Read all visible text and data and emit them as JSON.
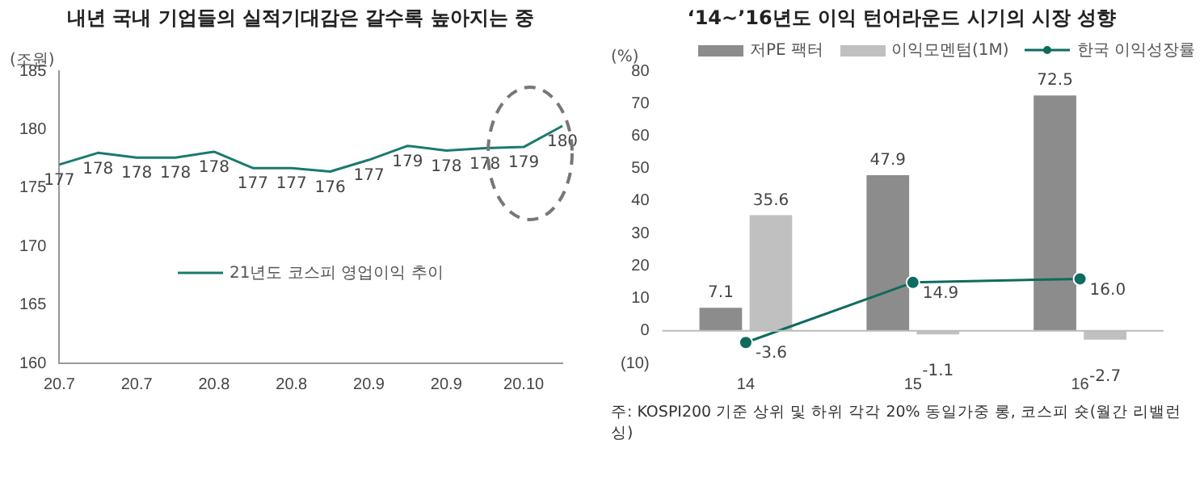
{
  "chart_data": [
    {
      "type": "line",
      "title": "내년 국내 기업들의 실적기대감은 갈수록 높아지는 중",
      "ylabel": "(조원)",
      "categories": [
        "20.7",
        null,
        "20.7",
        null,
        "20.8",
        null,
        "20.8",
        null,
        "20.9",
        null,
        "20.9",
        null,
        "20.10",
        null
      ],
      "series": [
        {
          "name": "21년도 코스피 영업이익 추이",
          "color": "#1a7a6e",
          "values": [
            177.0,
            178.0,
            177.6,
            177.6,
            178.1,
            176.7,
            176.7,
            176.4,
            177.4,
            178.6,
            178.2,
            178.4,
            178.5,
            180.3
          ],
          "value_labels": [
            "177",
            "178",
            "178",
            "178",
            "178",
            "177",
            "177",
            "176",
            "177",
            "179",
            "178",
            "178",
            "179",
            "180"
          ]
        }
      ],
      "ylim": [
        160,
        185
      ],
      "yticks": [
        160,
        165,
        170,
        175,
        180,
        185
      ],
      "grid": false,
      "legend": "center",
      "marker": "none"
    },
    {
      "type": "bar",
      "title": "‘14~’16년도 이익 턴어라운드 시기의 시장 성향",
      "ylabel": "(%)",
      "categories": [
        "14",
        "15",
        "16"
      ],
      "series": [
        {
          "name": "저PE 팩터",
          "color": "#8c8c8c",
          "values": [
            7.1,
            47.9,
            72.5
          ]
        },
        {
          "name": "이익모멘텀(1M)",
          "color": "#c0c0c0",
          "values": [
            35.6,
            -1.1,
            -2.7
          ]
        },
        {
          "name": "한국 이익성장률",
          "type": "line",
          "color": "#0f6b5e",
          "values": [
            -3.6,
            14.9,
            16.0
          ],
          "value_labels": [
            "-3.6",
            "14.9",
            "16.0"
          ]
        }
      ],
      "ref_lines": [
        {
          "axis": "y",
          "value": 0,
          "color": "#bbbbbb"
        }
      ],
      "ylim": [
        -10,
        80
      ],
      "yticks": [
        {
          "value": -10,
          "label": "(10)"
        },
        0,
        10,
        20,
        30,
        40,
        50,
        60,
        70,
        80
      ],
      "grid": false,
      "legend": "top",
      "marker": "circle",
      "data_labels": true,
      "annotations": [
        "주: KOSPI200 기준 상위 및 하위 각각 20% 동일가중 롱, 코스피 숏(월간 리밸런싱)"
      ]
    }
  ]
}
